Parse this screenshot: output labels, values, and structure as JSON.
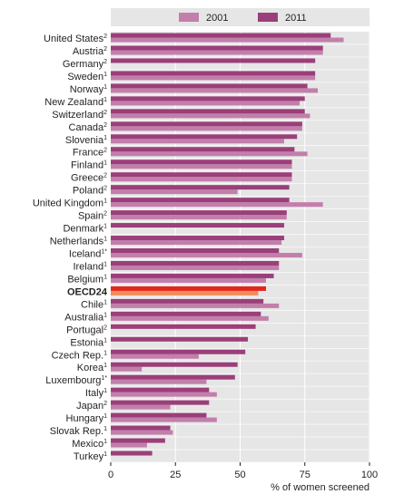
{
  "chart_data": {
    "type": "bar",
    "orientation": "horizontal",
    "xlabel": "% of women screened",
    "xlim": [
      0,
      100
    ],
    "xticks": [
      "0",
      "25",
      "50",
      "75",
      "100"
    ],
    "grid": true,
    "legend_position": "top",
    "colors": {
      "2001": "#c27fab",
      "2011": "#9b3f7a",
      "highlight_2001": "#f28c5a",
      "highlight_2011": "#e2261b",
      "plot_bg": "#e6e6e6",
      "legend_bg": "#e6e6e6"
    },
    "highlight_category": "OECD24",
    "categories": [
      {
        "name": "United States",
        "sup": "2"
      },
      {
        "name": "Austria",
        "sup": "2"
      },
      {
        "name": "Germany",
        "sup": "2"
      },
      {
        "name": "Sweden",
        "sup": "1"
      },
      {
        "name": "Norway",
        "sup": "1"
      },
      {
        "name": "New Zealand",
        "sup": "1"
      },
      {
        "name": "Switzerland",
        "sup": "2"
      },
      {
        "name": "Canada",
        "sup": "2"
      },
      {
        "name": "Slovenia",
        "sup": "1"
      },
      {
        "name": "France",
        "sup": "2"
      },
      {
        "name": "Finland",
        "sup": "1"
      },
      {
        "name": "Greece",
        "sup": "2"
      },
      {
        "name": "Poland",
        "sup": "2"
      },
      {
        "name": "United Kingdom",
        "sup": "1"
      },
      {
        "name": "Spain",
        "sup": "2"
      },
      {
        "name": "Denmark",
        "sup": "1"
      },
      {
        "name": "Netherlands",
        "sup": "1"
      },
      {
        "name": "Iceland",
        "sup": "1*"
      },
      {
        "name": "Ireland",
        "sup": "1"
      },
      {
        "name": "Belgium",
        "sup": "1"
      },
      {
        "name": "OECD24",
        "sup": ""
      },
      {
        "name": "Chile",
        "sup": "1"
      },
      {
        "name": "Australia",
        "sup": "1"
      },
      {
        "name": "Portugal",
        "sup": "2"
      },
      {
        "name": "Estonia",
        "sup": "1"
      },
      {
        "name": "Czech Rep.",
        "sup": "1"
      },
      {
        "name": "Korea",
        "sup": "1"
      },
      {
        "name": "Luxembourg",
        "sup": "1*"
      },
      {
        "name": "Italy",
        "sup": "1"
      },
      {
        "name": "Japan",
        "sup": "2"
      },
      {
        "name": "Hungary",
        "sup": "1"
      },
      {
        "name": "Slovak Rep.",
        "sup": "1"
      },
      {
        "name": "Mexico",
        "sup": "1"
      },
      {
        "name": "Turkey",
        "sup": "1"
      }
    ],
    "series": [
      {
        "name": "2001",
        "values": [
          90,
          82,
          null,
          79,
          80,
          73,
          77,
          74,
          67,
          76,
          70,
          70,
          49,
          82,
          68,
          null,
          66,
          74,
          65,
          60,
          57,
          65,
          61,
          null,
          null,
          34,
          12,
          37,
          41,
          23,
          41,
          24,
          14,
          null
        ]
      },
      {
        "name": "2011",
        "values": [
          85,
          82,
          79,
          79,
          76,
          75,
          75,
          74,
          72,
          71,
          70,
          70,
          69,
          69,
          68,
          67,
          67,
          65,
          65,
          63,
          60,
          59,
          58,
          56,
          53,
          52,
          49,
          48,
          38,
          38,
          37,
          23,
          21,
          16
        ]
      }
    ]
  }
}
